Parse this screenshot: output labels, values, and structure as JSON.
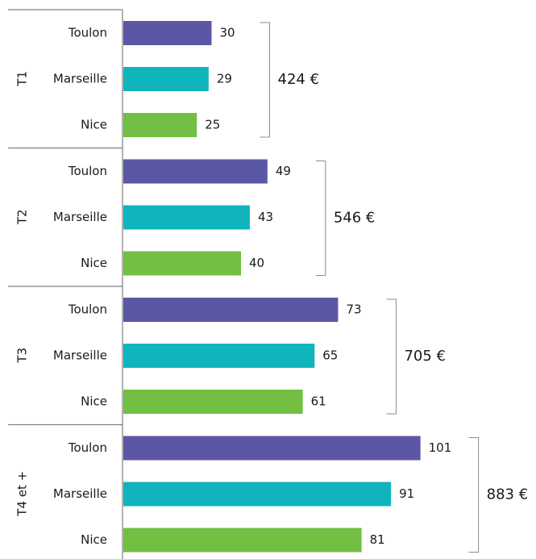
{
  "chart_data": {
    "type": "bar",
    "orientation": "horizontal",
    "groups": [
      "T1",
      "T2",
      "T3",
      "T4 et +"
    ],
    "series": [
      {
        "name": "Toulon",
        "color": "#5b57a5",
        "values": [
          30,
          49,
          73,
          101
        ]
      },
      {
        "name": "Marseille",
        "color": "#10b4bd",
        "values": [
          29,
          43,
          65,
          91
        ]
      },
      {
        "name": "Nice",
        "color": "#72bf44",
        "values": [
          25,
          40,
          61,
          81
        ]
      }
    ],
    "annotations": [
      "424 €",
      "546 €",
      "705 €",
      "883 €"
    ],
    "xlim": [
      0,
      140
    ]
  }
}
